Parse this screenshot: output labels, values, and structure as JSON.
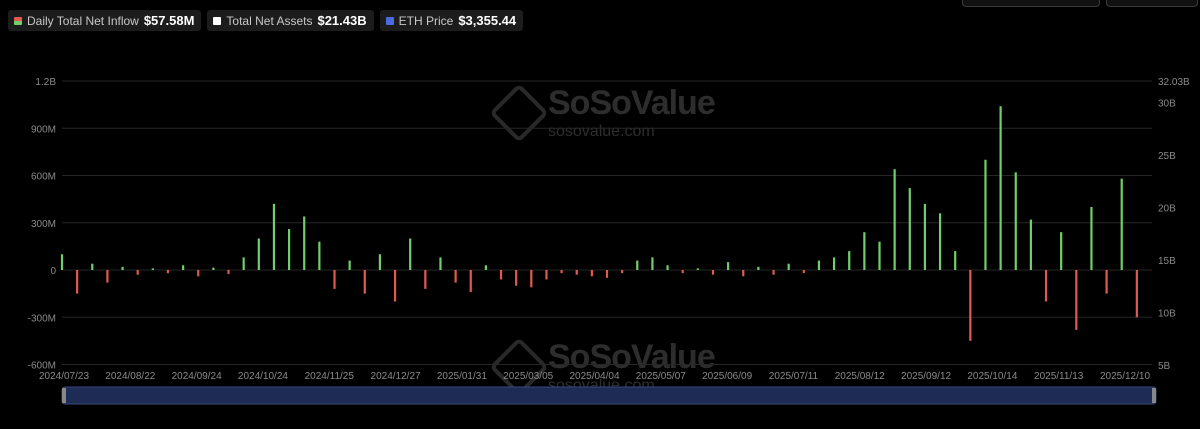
{
  "legend": [
    {
      "label": "Daily Total Net Inflow",
      "value": "$57.58M",
      "swatch": "split"
    },
    {
      "label": "Total Net Assets",
      "value": "$21.43B",
      "swatch": "white"
    },
    {
      "label": "ETH Price",
      "value": "$3,355.44",
      "swatch": "blue"
    }
  ],
  "watermark": {
    "name": "SoSoValue",
    "url": "sosovalue.com"
  },
  "colors": {
    "inflow": "#6fcf6a",
    "outflow": "#e05a4f",
    "assets": "#ffffff",
    "price": "#4a6be0",
    "grid": "#262626",
    "axis_text": "#8a8a8a"
  },
  "chart_data": {
    "type": "bar",
    "x_tick_labels": [
      "2024/07/23",
      "2024/08/22",
      "2024/09/24",
      "2024/10/24",
      "2024/11/25",
      "2024/12/27",
      "2025/01/31",
      "2025/03/05",
      "2025/04/04",
      "2025/05/07",
      "2025/06/09",
      "2025/07/11",
      "2025/08/12",
      "2025/09/12",
      "2025/10/14",
      "2025/11/13",
      "2025/12/10"
    ],
    "y_left_ticks": [
      "1.2B",
      "900M",
      "600M",
      "300M",
      "0",
      "-300M",
      "-600M"
    ],
    "y_left_values": [
      1200,
      900,
      600,
      300,
      0,
      -300,
      -600
    ],
    "y_left_unit": "M",
    "y_right_ticks": [
      "32.03B",
      "30B",
      "25B",
      "20B",
      "15B",
      "10B",
      "5B"
    ],
    "y_right_values": [
      32.03,
      30,
      25,
      20,
      15,
      10,
      5
    ],
    "ylim_left": [
      -600,
      1200
    ],
    "ylim_right": [
      5,
      32.03
    ],
    "grid": true,
    "series": [
      {
        "name": "Daily Total Net Inflow",
        "kind": "bar",
        "axis": "left",
        "x": [
          0,
          10,
          20,
          30,
          40,
          50,
          60,
          70,
          80,
          90,
          100,
          110,
          120,
          130,
          140,
          150,
          160,
          170,
          180,
          190,
          200,
          210,
          220,
          230,
          240,
          250,
          260,
          270,
          280,
          290,
          300,
          310,
          320,
          330,
          340,
          350,
          360,
          370,
          380,
          390,
          400,
          410,
          420,
          430,
          440,
          450,
          460,
          470,
          480,
          490,
          500
        ],
        "values": [
          100,
          -150,
          40,
          -80,
          20,
          -30,
          10,
          -20,
          30,
          -40,
          15,
          -25,
          80,
          200,
          420,
          260,
          340,
          180,
          -120,
          60,
          -150,
          100,
          -200,
          200,
          -120,
          80,
          -80,
          -140,
          30,
          -60,
          -100,
          -110,
          -60,
          -20,
          -30,
          -40,
          -50,
          -20,
          60,
          80,
          30,
          -20,
          10,
          -30,
          50,
          -40,
          20,
          -30,
          40,
          -20,
          60
        ]
      },
      {
        "name": "Daily Total Net Inflow",
        "kind": "bar",
        "axis": "left",
        "x": [
          510,
          520,
          530,
          540,
          550,
          560,
          570,
          580,
          590,
          600,
          610,
          620,
          630,
          640,
          650,
          660,
          670,
          680,
          690,
          700,
          710
        ],
        "values": [
          80,
          120,
          240,
          180,
          640,
          520,
          420,
          360,
          120,
          -450,
          700,
          1040,
          620,
          320,
          -200,
          240,
          -380,
          400,
          -150,
          580,
          -300
        ]
      }
    ]
  }
}
